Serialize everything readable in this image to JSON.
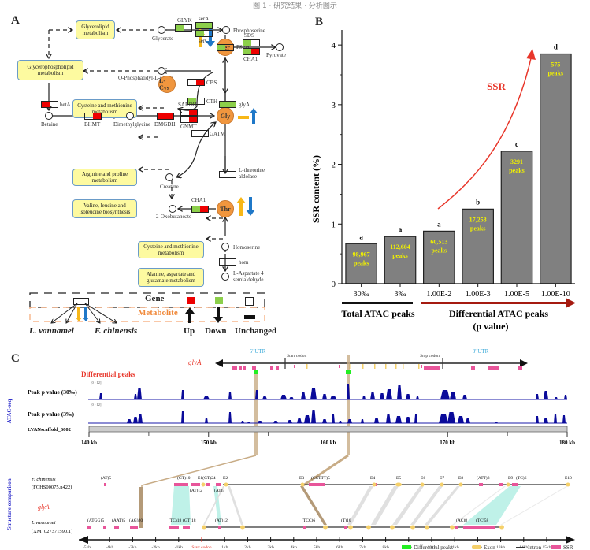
{
  "caption": "图 1 · 研究结果 · 分析图示",
  "panels": {
    "a": "A",
    "b": "B",
    "c": "C"
  },
  "pathway": {
    "boxes": [
      {
        "id": "glycerolipid",
        "label": "Glycerolipid metabolism"
      },
      {
        "id": "glycerophospholipid",
        "label": "Glycerophospholipid metabolism"
      },
      {
        "id": "cys-met-1",
        "label": "Cysteine and methionine metabolism"
      },
      {
        "id": "arg-pro",
        "label": "Arginine and proline metabolism"
      },
      {
        "id": "val-leu-ile",
        "label": "Valine, leucine and isoleucine biosynthesis"
      },
      {
        "id": "cys-met-2",
        "label": "Cysteine and methionine metabolism"
      },
      {
        "id": "ala-asp-glu",
        "label": "Alanine, aspartate and glutamate metabolism"
      }
    ],
    "compounds": {
      "glycerate": "Glycerate",
      "phosphoserine": "Phosphoserine",
      "o_phosphatidyl_serine": "O-Phosphatidyl-L-serine",
      "pyruvate": "Pyruvate",
      "betaine": "Betaine",
      "dimethylglycine": "Dimethylglycine",
      "creatine": "Creatine",
      "oxobutanoate": "2-Oxobutanoate",
      "homoserine": "Homoserine",
      "aspartate_semialdehyde": "L-Aspartate 4 semialdehyde"
    },
    "metabolites": {
      "ser": "Ser",
      "lcys": "L-Cys",
      "gly": "Gly",
      "thr": "Thr"
    },
    "genes": {
      "glyk": {
        "label": "GLYK",
        "left": "down",
        "right": "unchanged"
      },
      "serA": {
        "label": "serA",
        "left": "down",
        "right": "down"
      },
      "serC": {
        "label": "serC",
        "left": "down",
        "right": "unchanged"
      },
      "psph": {
        "label": "PSPH",
        "left": "down",
        "right": "unchanged"
      },
      "sds": {
        "label": "SDS",
        "left": "down",
        "right": "unchanged"
      },
      "cha1_top": {
        "label": "CHA1",
        "left": "down",
        "right": "up"
      },
      "cbs": {
        "label": "CBS",
        "left": "unchanged",
        "right": "up"
      },
      "cth": {
        "label": "CTH",
        "left": "down",
        "right": "unchanged"
      },
      "glyA": {
        "label": "glyA",
        "left": "down",
        "right": "down"
      },
      "betA": {
        "label": "betA",
        "left": "up",
        "right": "unchanged"
      },
      "bhmt": {
        "label": "BHMT",
        "left": "unchanged",
        "right": "up"
      },
      "dmgdh": {
        "label": "DMGDH",
        "left": "up",
        "right": "up"
      },
      "sardh": {
        "label": "SARDH",
        "left": "unchanged",
        "right": "up"
      },
      "gnmt": {
        "label": "GNMT",
        "left": "unchanged",
        "right": "up"
      },
      "gatm": {
        "label": "GATM",
        "left": "unchanged",
        "right": "unchanged"
      },
      "thr_aldolase": {
        "label": "L-threonine aldolase",
        "left": "unchanged",
        "right": "unchanged"
      },
      "cha1_thr": {
        "label": "CHA1",
        "left": "down",
        "right": "up"
      },
      "hom": {
        "label": "hom",
        "left": "unchanged",
        "right": "unchanged"
      }
    },
    "legend": {
      "gene_label": "Gene",
      "metabolite_label": "Metabolite",
      "species_left": "L. vannamei",
      "species_right": "F. chinensis",
      "up": "Up",
      "down": "Down",
      "unchanged": "Unchanged"
    },
    "colors": {
      "up": "#ee0000",
      "down": "#8ccf4a",
      "unchanged": "#ffffff",
      "lv_arrow": "#f7b718",
      "fc_arrow": "#1f78c8",
      "metabolite": "#f0963e",
      "box": "#fdfaa0"
    }
  },
  "chart_data": {
    "type": "bar",
    "title": "",
    "xlabel": "",
    "ylabel": "SSR content (%)",
    "ylim": [
      0,
      4.2
    ],
    "yticks": [
      0,
      1,
      2,
      3,
      4
    ],
    "categories": [
      "30‰",
      "3‰",
      "1.00E-2",
      "1.00E-3",
      "1.00E-5",
      "1.00E-10"
    ],
    "values": [
      0.67,
      0.79,
      0.88,
      1.25,
      2.22,
      3.85
    ],
    "letters": [
      "a",
      "a",
      "a",
      "b",
      "c",
      "d"
    ],
    "bar_labels": [
      "98,967 peaks",
      "112,604 peaks",
      "60,513 peaks",
      "17,258 peaks",
      "3291 peaks",
      "575 peaks"
    ],
    "group_labels": {
      "total": "Total ATAC peaks",
      "differential": "Differential ATAC peaks",
      "differential_sub": "(p value)"
    },
    "annotation": "SSR",
    "colors": {
      "bar": "#808080",
      "bar_label": "#f0f000",
      "annotation": "#e8362a",
      "diff_arrow": "#a51a10"
    }
  },
  "genome": {
    "gene_name": "glyA",
    "utr5": "5' UTR",
    "utr3": "3' UTR",
    "start_codon": "Start codon",
    "stop_codon": "Stop codon",
    "diff_peaks_label": "Differential peaks",
    "atac_label": "ATAC-seq",
    "track1_label": "Peak p value (30‰)",
    "track2_label": "Peak p value (3‰)",
    "track_range": "[0 - 12]",
    "scaffold": "LVANscaffold_3002",
    "axis_ticks": [
      "140 kb",
      "150 kb",
      "160 kb",
      "170 kb",
      "180 kb"
    ],
    "structure_label": "Structure comparison",
    "fc_species": "F. chinensis",
    "fc_id": "(FCHS00075.n422)",
    "lv_species": "L.vannamei",
    "lv_id": "(XM_027371590.1)",
    "gene_italic": "glyA",
    "fc_labels": [
      "(AT)5",
      "(GT)10",
      "E1(GT)24",
      "E2",
      "(AT)12",
      "(AT)5",
      "E3",
      "(CCTTT)5",
      "E4",
      "E5",
      "E6",
      "E7",
      "E8",
      "(ATT)8",
      "E9",
      "(TC)6",
      "E10"
    ],
    "lv_labels": [
      "(ATGG)5",
      "(AAT)5",
      "(AG)20",
      "(TC)18",
      "(GT)18",
      "(AT)12",
      "(TCC)6",
      "(T)16",
      "(AC)8",
      "(TC)58"
    ],
    "bottom_ticks": [
      "-5kb",
      "-4kb",
      "-3kb",
      "-2kb",
      "-1kb",
      "Start codon",
      "1kb",
      "2kb",
      "3kb",
      "4kb",
      "5kb",
      "6kb",
      "7kb",
      "8kb",
      "9kb",
      "10kb",
      "11kb",
      "12kb",
      "13kb",
      "14kb",
      "15kb"
    ],
    "legend": [
      {
        "label": "Differential peaks",
        "color": "#22ee22"
      },
      {
        "label": "Exon",
        "color": "#f5d06a"
      },
      {
        "label": "Intron",
        "color": "#333333"
      },
      {
        "label": "SSR",
        "color": "#e8559a"
      }
    ]
  }
}
